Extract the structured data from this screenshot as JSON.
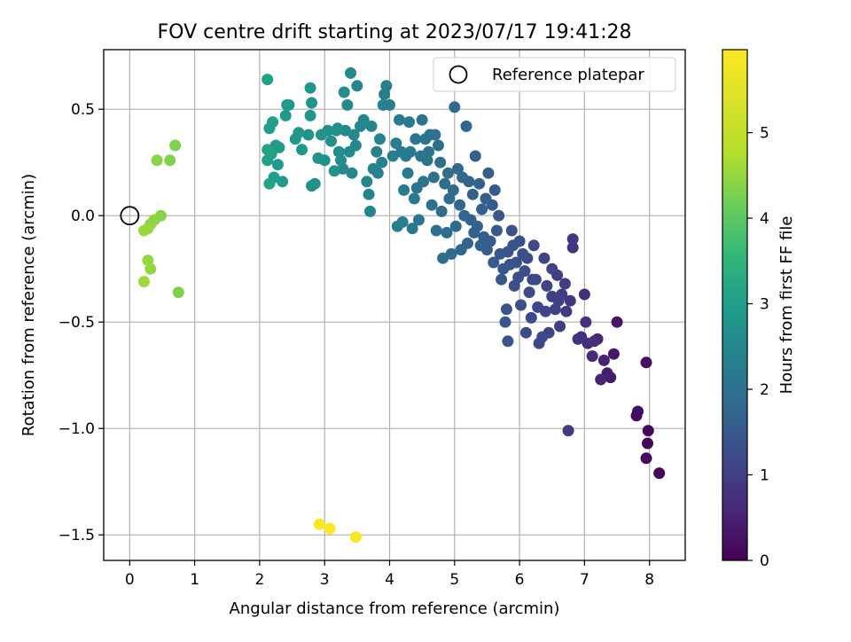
{
  "chart_data": {
    "type": "scatter",
    "title": "FOV centre drift starting at 2023/07/17 19:41:28",
    "xlabel": "Angular distance from reference (arcmin)",
    "ylabel": "Rotation from reference (arcmin)",
    "xlim": [
      -0.4,
      8.55
    ],
    "ylim": [
      -1.62,
      0.78
    ],
    "xticks": [
      0,
      1,
      2,
      3,
      4,
      5,
      6,
      7,
      8
    ],
    "xtick_labels": [
      "0",
      "1",
      "2",
      "3",
      "4",
      "5",
      "6",
      "7",
      "8"
    ],
    "yticks": [
      0.5,
      0.0,
      -0.5,
      -1.0,
      -1.5
    ],
    "ytick_labels": [
      "0.5",
      "0.0",
      "−0.5",
      "−1.0",
      "−1.5"
    ],
    "grid": true,
    "legend": {
      "placement": "top-right",
      "entries": [
        "Reference platepar"
      ]
    },
    "reference_point": {
      "label": "Reference platepar",
      "x": 0,
      "y": 0,
      "marker": "open-circle"
    },
    "colorbar": {
      "label": "Hours from first FF file",
      "colormap": "viridis",
      "range": [
        0,
        5.97
      ],
      "ticks": [
        0,
        1,
        2,
        3,
        4,
        5
      ],
      "tick_labels": [
        "0",
        "1",
        "2",
        "3",
        "4",
        "5"
      ]
    },
    "series": [
      {
        "color_by": "hours",
        "points": [
          [
            8.15,
            -1.21,
            0.05
          ],
          [
            7.98,
            -1.01,
            0.08
          ],
          [
            7.97,
            -1.07,
            0.1
          ],
          [
            7.95,
            -1.14,
            0.12
          ],
          [
            7.8,
            -0.94,
            0.15
          ],
          [
            7.82,
            -0.92,
            0.18
          ],
          [
            7.95,
            -0.69,
            0.2
          ],
          [
            7.5,
            -0.5,
            0.3
          ],
          [
            7.45,
            -0.65,
            0.35
          ],
          [
            7.4,
            -0.76,
            0.4
          ],
          [
            7.35,
            -0.74,
            0.45
          ],
          [
            7.3,
            -0.68,
            0.5
          ],
          [
            7.25,
            -0.77,
            0.55
          ],
          [
            7.2,
            -0.58,
            0.6
          ],
          [
            7.12,
            -0.66,
            0.65
          ],
          [
            7.15,
            -0.59,
            0.68
          ],
          [
            7.05,
            -0.6,
            0.7
          ],
          [
            7.02,
            -0.5,
            0.72
          ],
          [
            7.0,
            -0.37,
            0.75
          ],
          [
            6.95,
            -0.57,
            0.78
          ],
          [
            6.9,
            -0.58,
            0.8
          ],
          [
            6.82,
            -0.15,
            0.82
          ],
          [
            6.82,
            -0.11,
            0.85
          ],
          [
            6.78,
            -0.4,
            0.88
          ],
          [
            6.72,
            -0.45,
            0.9
          ],
          [
            6.75,
            -1.01,
            0.92
          ],
          [
            6.7,
            -0.32,
            0.95
          ],
          [
            6.65,
            -0.37,
            0.98
          ],
          [
            6.62,
            -0.52,
            1.0
          ],
          [
            6.6,
            -0.4,
            1.0
          ],
          [
            6.58,
            -0.28,
            1.02
          ],
          [
            6.55,
            -0.44,
            1.05
          ],
          [
            6.5,
            -0.38,
            1.05
          ],
          [
            6.5,
            -0.25,
            1.08
          ],
          [
            6.45,
            -0.55,
            1.1
          ],
          [
            6.42,
            -0.33,
            1.1
          ],
          [
            6.4,
            -0.45,
            1.12
          ],
          [
            6.38,
            -0.2,
            1.12
          ],
          [
            6.35,
            -0.57,
            1.15
          ],
          [
            6.3,
            -0.6,
            1.15
          ],
          [
            6.28,
            -0.43,
            1.18
          ],
          [
            6.25,
            -0.3,
            1.2
          ],
          [
            6.22,
            -0.14,
            1.2
          ],
          [
            6.2,
            -0.3,
            1.22
          ],
          [
            6.18,
            -0.48,
            1.22
          ],
          [
            6.15,
            -0.36,
            1.25
          ],
          [
            6.12,
            -0.2,
            1.25
          ],
          [
            6.1,
            -0.55,
            1.28
          ],
          [
            6.08,
            -0.26,
            1.28
          ],
          [
            6.05,
            -0.18,
            1.3
          ],
          [
            6.02,
            -0.42,
            1.3
          ],
          [
            6.0,
            -0.12,
            1.32
          ],
          [
            5.98,
            -0.29,
            1.32
          ],
          [
            5.95,
            -0.22,
            1.35
          ],
          [
            5.92,
            -0.33,
            1.35
          ],
          [
            5.9,
            -0.14,
            1.38
          ],
          [
            5.88,
            -0.07,
            1.38
          ],
          [
            5.85,
            -0.23,
            1.4
          ],
          [
            5.82,
            -0.17,
            1.4
          ],
          [
            5.82,
            -0.59,
            1.42
          ],
          [
            5.8,
            -0.44,
            1.42
          ],
          [
            5.78,
            -0.5,
            1.45
          ],
          [
            5.75,
            -0.25,
            1.45
          ],
          [
            5.72,
            -0.3,
            1.48
          ],
          [
            5.7,
            -0.18,
            1.48
          ],
          [
            5.68,
            0.0,
            1.5
          ],
          [
            5.65,
            -0.07,
            1.5
          ],
          [
            5.62,
            0.12,
            1.52
          ],
          [
            5.6,
            -0.22,
            1.52
          ],
          [
            5.58,
            0.05,
            1.55
          ],
          [
            5.55,
            -0.12,
            1.55
          ],
          [
            5.52,
            0.2,
            1.58
          ],
          [
            5.5,
            -0.16,
            1.58
          ],
          [
            5.48,
            0.08,
            1.6
          ],
          [
            5.45,
            -0.1,
            1.6
          ],
          [
            5.42,
            0.03,
            1.62
          ],
          [
            5.4,
            -0.14,
            1.62
          ],
          [
            5.38,
            0.15,
            1.65
          ],
          [
            5.35,
            -0.05,
            1.65
          ],
          [
            5.32,
            0.28,
            1.68
          ],
          [
            5.3,
            -0.08,
            1.68
          ],
          [
            5.28,
            0.1,
            1.7
          ],
          [
            5.25,
            -0.02,
            1.7
          ],
          [
            5.22,
            0.16,
            1.72
          ],
          [
            5.2,
            -0.13,
            1.72
          ],
          [
            5.18,
            0.42,
            1.75
          ],
          [
            5.15,
            0.0,
            1.75
          ],
          [
            5.12,
            0.18,
            1.78
          ],
          [
            5.1,
            -0.16,
            1.78
          ],
          [
            5.08,
            0.05,
            1.8
          ],
          [
            5.05,
            0.22,
            1.8
          ],
          [
            5.02,
            -0.05,
            1.82
          ],
          [
            5.0,
            0.51,
            1.82
          ],
          [
            4.98,
            0.12,
            1.85
          ],
          [
            4.95,
            -0.18,
            1.85
          ],
          [
            4.92,
            0.08,
            1.88
          ],
          [
            4.9,
            0.2,
            1.88
          ],
          [
            4.88,
            -0.08,
            1.9
          ],
          [
            4.85,
            0.15,
            1.9
          ],
          [
            4.82,
            -0.2,
            1.92
          ],
          [
            4.8,
            0.02,
            1.92
          ],
          [
            4.78,
            0.25,
            1.95
          ],
          [
            4.75,
            0.33,
            1.95
          ],
          [
            4.72,
            -0.07,
            1.98
          ],
          [
            4.7,
            0.38,
            1.98
          ],
          [
            4.68,
            0.18,
            2.0
          ],
          [
            4.65,
            0.05,
            2.0
          ],
          [
            4.62,
            0.38,
            2.02
          ],
          [
            4.6,
            0.3,
            2.02
          ],
          [
            4.58,
            0.26,
            2.05
          ],
          [
            4.55,
            0.36,
            2.05
          ],
          [
            4.52,
            0.16,
            2.08
          ],
          [
            4.5,
            0.45,
            2.08
          ],
          [
            4.48,
            0.28,
            2.1
          ],
          [
            4.45,
            -0.02,
            2.1
          ],
          [
            4.42,
            0.13,
            2.12
          ],
          [
            4.4,
            0.36,
            2.12
          ],
          [
            4.38,
            0.08,
            2.15
          ],
          [
            4.35,
            -0.06,
            2.15
          ],
          [
            4.32,
            0.3,
            2.18
          ],
          [
            4.3,
            0.44,
            2.18
          ],
          [
            4.28,
            0.2,
            2.2
          ],
          [
            4.25,
            0.28,
            2.2
          ],
          [
            4.22,
            0.12,
            2.22
          ],
          [
            4.2,
            -0.03,
            2.22
          ],
          [
            4.18,
            0.3,
            2.25
          ],
          [
            4.15,
            0.45,
            2.25
          ],
          [
            4.12,
            -0.05,
            2.28
          ],
          [
            4.1,
            0.34,
            2.28
          ],
          [
            4.05,
            0.28,
            2.3
          ],
          [
            4.0,
            0.52,
            2.3
          ],
          [
            3.95,
            0.61,
            2.32
          ],
          [
            3.92,
            0.57,
            2.32
          ],
          [
            3.9,
            0.52,
            2.35
          ],
          [
            3.88,
            0.25,
            2.35
          ],
          [
            3.85,
            0.36,
            2.38
          ],
          [
            3.82,
            0.2,
            2.38
          ],
          [
            3.8,
            0.3,
            2.4
          ],
          [
            3.75,
            0.22,
            2.4
          ],
          [
            3.72,
            0.42,
            2.42
          ],
          [
            3.7,
            0.02,
            2.42
          ],
          [
            3.68,
            0.1,
            2.45
          ],
          [
            3.65,
            0.16,
            2.45
          ],
          [
            3.6,
            0.45,
            2.48
          ],
          [
            3.55,
            0.42,
            2.48
          ],
          [
            3.5,
            0.61,
            2.5
          ],
          [
            3.48,
            0.33,
            2.5
          ],
          [
            3.45,
            0.38,
            2.52
          ],
          [
            3.42,
            0.2,
            2.52
          ],
          [
            3.4,
            0.67,
            2.55
          ],
          [
            3.38,
            0.3,
            2.55
          ],
          [
            3.35,
            0.52,
            2.58
          ],
          [
            3.32,
            0.4,
            2.58
          ],
          [
            3.3,
            0.58,
            2.6
          ],
          [
            3.28,
            0.22,
            2.6
          ],
          [
            3.25,
            0.26,
            2.62
          ],
          [
            3.22,
            0.3,
            2.62
          ],
          [
            3.2,
            0.41,
            2.65
          ],
          [
            3.18,
            0.4,
            2.65
          ],
          [
            3.15,
            0.21,
            2.68
          ],
          [
            3.1,
            0.35,
            2.68
          ],
          [
            3.05,
            0.4,
            2.7
          ],
          [
            3.0,
            0.26,
            2.7
          ],
          [
            2.95,
            0.38,
            2.72
          ],
          [
            2.9,
            0.27,
            2.72
          ],
          [
            2.85,
            0.15,
            2.75
          ],
          [
            2.8,
            0.14,
            2.75
          ],
          [
            2.78,
            0.6,
            2.78
          ],
          [
            2.8,
            0.53,
            2.78
          ],
          [
            2.78,
            0.47,
            2.8
          ],
          [
            2.75,
            0.38,
            2.8
          ],
          [
            2.65,
            0.31,
            2.82
          ],
          [
            2.6,
            0.39,
            2.85
          ],
          [
            2.55,
            0.36,
            2.85
          ],
          [
            2.45,
            0.52,
            2.88
          ],
          [
            2.42,
            0.52,
            2.9
          ],
          [
            2.4,
            0.47,
            2.9
          ],
          [
            2.35,
            0.16,
            2.92
          ],
          [
            2.3,
            0.32,
            2.92
          ],
          [
            2.28,
            0.24,
            2.95
          ],
          [
            2.25,
            0.33,
            2.95
          ],
          [
            2.22,
            0.18,
            2.98
          ],
          [
            2.2,
            0.44,
            3.0
          ],
          [
            2.18,
            0.29,
            3.0
          ],
          [
            2.15,
            0.41,
            3.02
          ],
          [
            2.12,
            0.64,
            3.05
          ],
          [
            2.12,
            0.26,
            3.05
          ],
          [
            2.12,
            0.31,
            3.08
          ],
          [
            2.15,
            0.15,
            3.1
          ],
          [
            0.75,
            -0.36,
            4.3
          ],
          [
            0.7,
            0.33,
            4.32
          ],
          [
            0.62,
            0.26,
            4.35
          ],
          [
            0.48,
            0.0,
            4.38
          ],
          [
            0.42,
            0.26,
            4.4
          ],
          [
            0.38,
            -0.02,
            4.42
          ],
          [
            0.32,
            -0.04,
            4.45
          ],
          [
            0.32,
            -0.25,
            4.48
          ],
          [
            0.28,
            -0.06,
            4.5
          ],
          [
            0.28,
            -0.21,
            4.52
          ],
          [
            0.22,
            -0.07,
            4.55
          ],
          [
            0.22,
            -0.31,
            4.58
          ],
          [
            3.48,
            -1.51,
            5.9
          ],
          [
            3.08,
            -1.47,
            5.92
          ],
          [
            2.92,
            -1.45,
            5.95
          ]
        ]
      }
    ]
  }
}
